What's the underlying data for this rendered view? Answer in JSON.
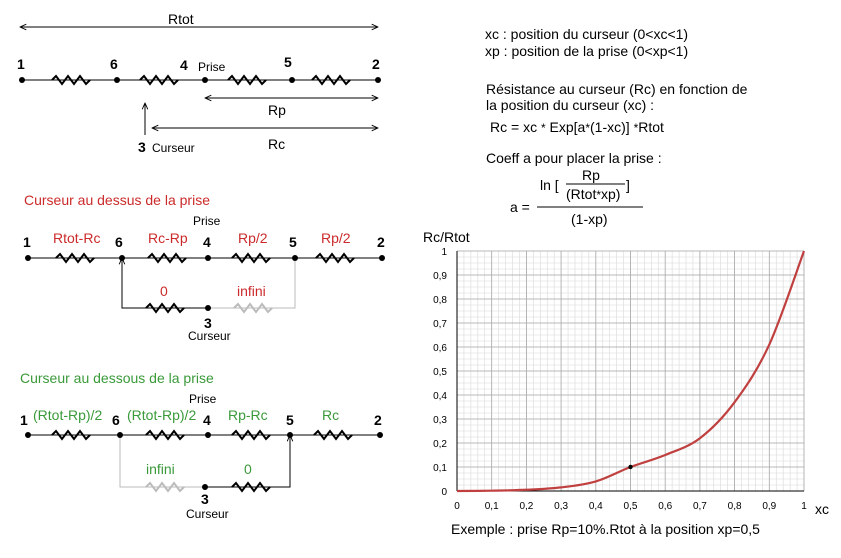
{
  "top": {
    "rtot": "Rtot",
    "rp": "Rp",
    "rc": "Rc",
    "n1": "1",
    "n6": "6",
    "n4": "4",
    "n5": "5",
    "n2": "2",
    "n3": "3",
    "prise": "Prise",
    "curseur": "Curseur"
  },
  "defs": {
    "xc": "xc : position du curseur (0<xc<1)",
    "xp": "xp : position de la prise  (0<xp<1)",
    "res1": "Résistance au curseur (Rc) en fonction de",
    "res2": "la position du curseur (xc) :",
    "eq1_a": "Rc = xc",
    "eq1_b": "Exp[a",
    "eq1_c": "(1-xc)]",
    "eq1_d": "Rtot",
    "coeff": "Coeff a  pour placer la prise :",
    "a_eq": "a =",
    "ln": "ln [",
    "num": "Rp",
    "den": "(Rtot",
    "den2": "xp)",
    "close": "]",
    "den_out": "(1-xp)",
    "star": "*"
  },
  "above": {
    "title": "Curseur au dessus de la prise",
    "r1": "Rtot-Rc",
    "r2": "Rc-Rp",
    "r3": "Rp/2",
    "r4": "Rp/2",
    "r5": "0",
    "r6": "infini",
    "n1": "1",
    "n6": "6",
    "n4": "4",
    "n5": "5",
    "n2": "2",
    "n3": "3",
    "prise": "Prise",
    "curseur": "Curseur"
  },
  "below": {
    "title": "Curseur au dessous de la prise",
    "r1": "(Rtot-Rp)/2",
    "r2": "(Rtot-Rp)/2",
    "r3": "Rp-Rc",
    "r4": "Rc",
    "r5": "infini",
    "r6": "0",
    "n1": "1",
    "n6": "6",
    "n4": "4",
    "n5": "5",
    "n2": "2",
    "n3": "3",
    "prise": "Prise",
    "curseur": "Curseur"
  },
  "colors": {
    "red": "#cc2a2a",
    "green": "#3a9a3a",
    "curve": "#c04040",
    "grid": "#c8c8c8"
  },
  "chart_data": {
    "type": "line",
    "ylabel": "Rc/Rtot",
    "xlabel": "xc",
    "xlim": [
      0,
      1
    ],
    "ylim": [
      0,
      1
    ],
    "x_ticks": [
      "0",
      "0,1",
      "0,2",
      "0,3",
      "0,4",
      "0,5",
      "0,6",
      "0,7",
      "0,8",
      "0,9",
      "1"
    ],
    "y_ticks": [
      "0",
      "0,1",
      "0,2",
      "0,3",
      "0,4",
      "0,5",
      "0,6",
      "0,7",
      "0,8",
      "0,9",
      "1"
    ],
    "series": [
      {
        "x": [
          0,
          0.1,
          0.2,
          0.3,
          0.4,
          0.5,
          0.6,
          0.7,
          0.8,
          0.9,
          1
        ],
        "values": [
          0,
          0.0013,
          0.0051,
          0.015,
          0.04,
          0.1,
          0.15,
          0.22,
          0.37,
          0.61,
          1
        ]
      }
    ],
    "marker": {
      "x": 0.5,
      "y": 0.1
    },
    "caption": "Exemple : prise Rp=10%.Rtot  à la position xp=0,5"
  }
}
